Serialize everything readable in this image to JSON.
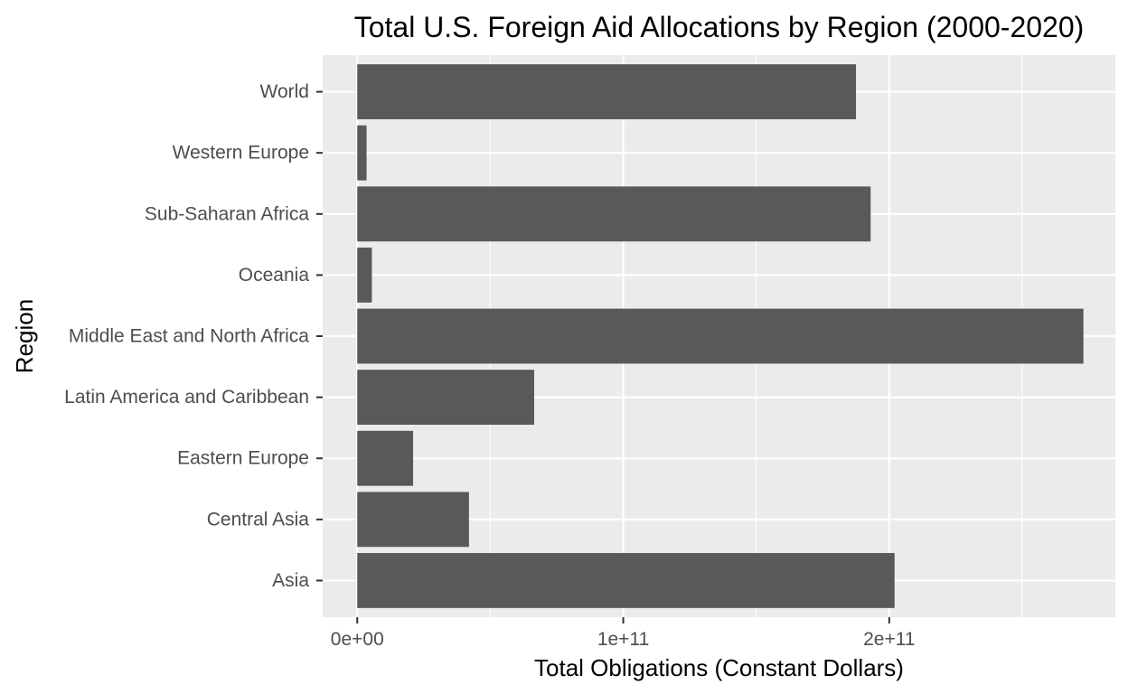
{
  "chart_data": {
    "type": "bar",
    "orientation": "horizontal",
    "title": "Total U.S. Foreign Aid Allocations by Region (2000-2020)",
    "xlabel": "Total Obligations (Constant Dollars)",
    "ylabel": "Region",
    "categories": [
      "Asia",
      "Central Asia",
      "Eastern Europe",
      "Latin America and Caribbean",
      "Middle East and North Africa",
      "Oceania",
      "Sub-Saharan Africa",
      "Western Europe",
      "World"
    ],
    "values": [
      202000000000,
      42000000000,
      21000000000,
      66500000000,
      273000000000,
      5500000000,
      193000000000,
      3500000000,
      187500000000
    ],
    "xlim": [
      -13000000000,
      285000000000
    ],
    "x_ticks": [
      0,
      100000000000,
      200000000000
    ],
    "x_tick_labels": [
      "0e+00",
      "1e+11",
      "2e+11"
    ],
    "grid": true,
    "bar_color": "#595959",
    "panel_color": "#ebebeb",
    "grid_color": "#ffffff"
  }
}
